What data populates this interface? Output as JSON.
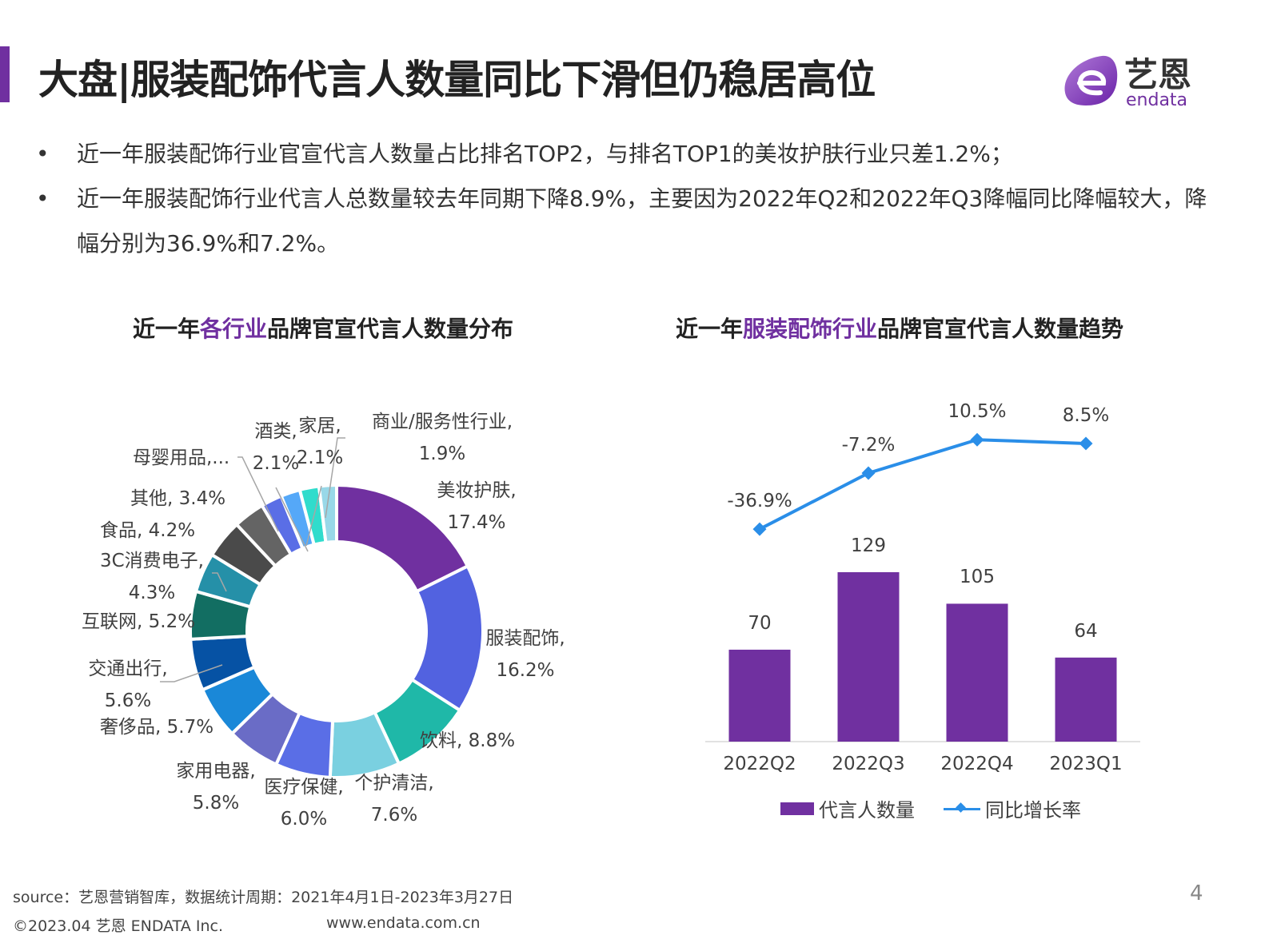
{
  "header": {
    "title": "大盘|服装配饰代言人数量同比下滑但仍稳居高位",
    "logo_text_cn": "艺恩",
    "logo_text_en": "endata",
    "accent_color": "#7030a0"
  },
  "bullets": [
    {
      "marker": "•",
      "text": "近一年服装配饰行业官宣代言人数量占比排名TOP2，与排名TOP1的美妆护肤行业只差1.2%；"
    },
    {
      "marker": "•",
      "text": "近一年服装配饰行业代言人总数量较去年同期下降8.9%，主要因为2022年Q2和2022年Q3降幅同比降幅较大，降幅分别为36.9%和7.2%。"
    }
  ],
  "chart_titles": {
    "left": {
      "pre": "近一年",
      "hl": "各行业",
      "post": "品牌官宣代言人数量分布"
    },
    "right": {
      "pre": "近一年",
      "hl": "服装配饰行业",
      "post": "品牌官宣代言人数量趋势"
    }
  },
  "chart_data": [
    {
      "type": "pie",
      "subtype": "donut",
      "title": "近一年各行业品牌官宣代言人数量分布",
      "slices": [
        {
          "name": "美妆护肤",
          "label": "美妆护肤,",
          "value_label": "17.4%",
          "value": 17.4,
          "color": "#7030a0"
        },
        {
          "name": "服装配饰",
          "label": "服装配饰,",
          "value_label": "16.2%",
          "value": 16.2,
          "color": "#5262e0"
        },
        {
          "name": "饮料",
          "label": "饮料,",
          "value_label": "8.8%",
          "value": 8.8,
          "color": "#1fb8a8"
        },
        {
          "name": "个护清洁",
          "label": "个护清洁,",
          "value_label": "7.6%",
          "value": 7.6,
          "color": "#7ad0e0"
        },
        {
          "name": "医疗保健",
          "label": "医疗保健,",
          "value_label": "6.0%",
          "value": 6.0,
          "color": "#5a6ee6"
        },
        {
          "name": "家用电器",
          "label": "家用电器,",
          "value_label": "5.8%",
          "value": 5.8,
          "color": "#6a6cc6"
        },
        {
          "name": "奢侈品",
          "label": "奢侈品,",
          "value_label": "5.7%",
          "value": 5.7,
          "color": "#1a88d8"
        },
        {
          "name": "交通出行",
          "label": "交通出行,",
          "value_label": "5.6%",
          "value": 5.6,
          "color": "#0652a4"
        },
        {
          "name": "互联网",
          "label": "互联网,",
          "value_label": "5.2%",
          "value": 5.2,
          "color": "#126e62"
        },
        {
          "name": "3C消费电子",
          "label": "3C消费电子,",
          "value_label": "4.3%",
          "value": 4.3,
          "color": "#2590a8"
        },
        {
          "name": "食品",
          "label": "食品,",
          "value_label": "4.2%",
          "value": 4.2,
          "color": "#4a4a4a"
        },
        {
          "name": "其他",
          "label": "其他,",
          "value_label": "3.4%",
          "value": 3.4,
          "color": "#646464"
        },
        {
          "name": "母婴用品",
          "label": "母婴用品,...",
          "value_label": "",
          "value": 2.3,
          "color": "#5a6ee6"
        },
        {
          "name": "酒类",
          "label": "酒类,",
          "value_label": "2.1%",
          "value": 2.1,
          "color": "#55a8f8"
        },
        {
          "name": "家居",
          "label": "家居,",
          "value_label": "2.1%",
          "value": 2.1,
          "color": "#30dccc"
        },
        {
          "name": "商业/服务性行业",
          "label": "商业/服务性行业,",
          "value_label": "1.9%",
          "value": 1.9,
          "color": "#98d8e8"
        }
      ]
    },
    {
      "type": "bar+line",
      "title": "近一年服装配饰行业品牌官宣代言人数量趋势",
      "categories": [
        "2022Q2",
        "2022Q3",
        "2022Q4",
        "2023Q1"
      ],
      "series": [
        {
          "name": "代言人数量",
          "type": "bar",
          "values": [
            70,
            129,
            105,
            64
          ],
          "labels": [
            "70",
            "129",
            "105",
            "64"
          ],
          "color": "#7030a0"
        },
        {
          "name": "同比增长率",
          "type": "line",
          "values": [
            -36.9,
            -7.2,
            10.5,
            8.5
          ],
          "labels": [
            "-36.9%",
            "-7.2%",
            "10.5%",
            "8.5%"
          ],
          "unit": "%",
          "color": "#2a8ee8"
        }
      ],
      "grid": false,
      "legend": "bottom"
    }
  ],
  "footer": {
    "source": "source：艺恩营销智库，数据统计周期：2021年4月1日-2023年3月27日",
    "copyright": "©2023.04 艺恩 ENDATA Inc.",
    "website": "www.endata.com.cn",
    "page_number": "4"
  }
}
